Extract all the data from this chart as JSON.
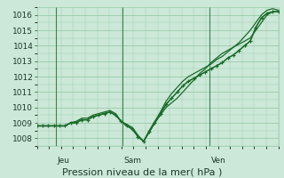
{
  "background_color": "#cce8d8",
  "grid_color": "#99ccaa",
  "line_color": "#1a6b2a",
  "marker_color": "#1a6b2a",
  "ylim": [
    1007.5,
    1016.5
  ],
  "yticks": [
    1008,
    1009,
    1010,
    1011,
    1012,
    1013,
    1014,
    1015,
    1016
  ],
  "xlabel": "Pression niveau de la mer( hPa )",
  "day_labels": [
    "Jeu",
    "Sam",
    "Ven"
  ],
  "day_positions": [
    0.08,
    0.355,
    0.715
  ],
  "series": [
    [
      1008.8,
      1008.8,
      1008.8,
      1008.8,
      1008.8,
      1008.8,
      1009.0,
      1009.0,
      1009.2,
      1009.2,
      1009.4,
      1009.5,
      1009.6,
      1009.7,
      1009.5,
      1009.1,
      1008.8,
      1008.6,
      1008.1,
      1007.8,
      1008.4,
      1009.0,
      1009.6,
      1010.2,
      1010.6,
      1011.0,
      1011.4,
      1011.7,
      1011.9,
      1012.1,
      1012.3,
      1012.5,
      1012.7,
      1012.9,
      1013.2,
      1013.4,
      1013.7,
      1014.0,
      1014.3,
      1015.2,
      1015.8,
      1016.1,
      1016.2,
      1016.2
    ],
    [
      1008.8,
      1008.8,
      1008.8,
      1008.8,
      1008.8,
      1008.8,
      1009.0,
      1009.0,
      1009.2,
      1009.2,
      1009.4,
      1009.5,
      1009.6,
      1009.7,
      1009.5,
      1009.1,
      1008.8,
      1008.6,
      1008.1,
      1007.8,
      1008.4,
      1009.0,
      1009.5,
      1010.0,
      1010.3,
      1010.6,
      1011.0,
      1011.4,
      1011.8,
      1012.2,
      1012.5,
      1012.9,
      1013.2,
      1013.5,
      1013.7,
      1013.9,
      1014.1,
      1014.3,
      1014.5,
      1015.0,
      1015.5,
      1016.0,
      1016.2,
      1016.2
    ],
    [
      1008.8,
      1008.8,
      1008.8,
      1008.8,
      1008.8,
      1008.8,
      1009.0,
      1009.1,
      1009.3,
      1009.3,
      1009.5,
      1009.6,
      1009.7,
      1009.8,
      1009.6,
      1009.1,
      1008.9,
      1008.7,
      1008.2,
      1007.8,
      1008.5,
      1009.1,
      1009.7,
      1010.4,
      1010.9,
      1011.3,
      1011.7,
      1012.0,
      1012.2,
      1012.4,
      1012.6,
      1012.8,
      1013.1,
      1013.3,
      1013.6,
      1013.9,
      1014.2,
      1014.6,
      1015.0,
      1015.5,
      1016.0,
      1016.3,
      1016.4,
      1016.3
    ]
  ]
}
